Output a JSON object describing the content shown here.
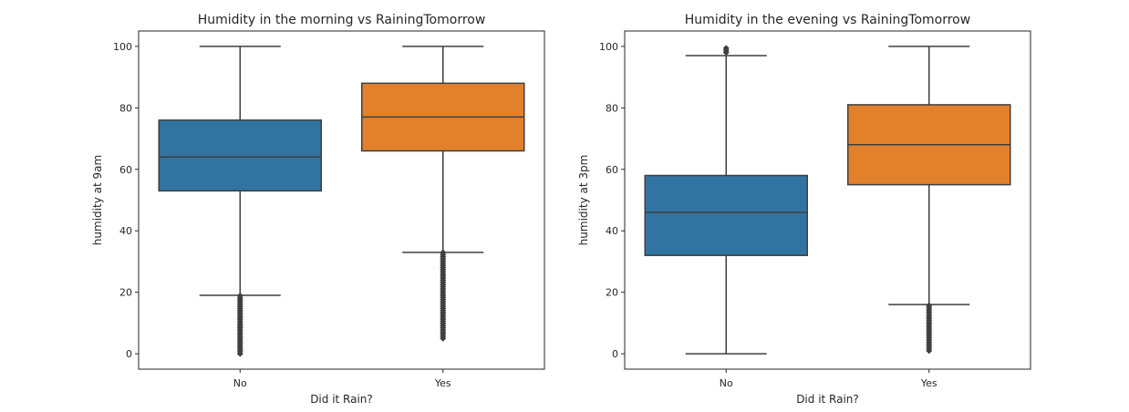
{
  "chart_data": [
    {
      "type": "box",
      "title": "Humidity in the morning vs RainingTomorrow",
      "xlabel": "Did it Rain?",
      "ylabel": "humidity at 9am",
      "ylim": [
        -5,
        105
      ],
      "yticks": [
        0,
        20,
        40,
        60,
        80,
        100
      ],
      "grid": false,
      "categories": [
        "No",
        "Yes"
      ],
      "boxes": [
        {
          "category": "No",
          "color": "#3274a1",
          "whisker_low": 19,
          "q1": 53,
          "median": 64,
          "q3": 76,
          "whisker_high": 100,
          "outliers_low_range": [
            0,
            19
          ]
        },
        {
          "category": "Yes",
          "color": "#e1812c",
          "whisker_low": 33,
          "q1": 66,
          "median": 77,
          "q3": 88,
          "whisker_high": 100,
          "outliers_low_range": [
            5,
            33
          ]
        }
      ]
    },
    {
      "type": "box",
      "title": "Humidity in the evening vs RainingTomorrow",
      "xlabel": "Did it Rain?",
      "ylabel": "humidity at 3pm",
      "ylim": [
        -5,
        105
      ],
      "yticks": [
        0,
        20,
        40,
        60,
        80,
        100
      ],
      "grid": false,
      "categories": [
        "No",
        "Yes"
      ],
      "boxes": [
        {
          "category": "No",
          "color": "#3274a1",
          "whisker_low": 0,
          "q1": 32,
          "median": 46,
          "q3": 58,
          "whisker_high": 97,
          "outliers_high_range": [
            98,
            100
          ]
        },
        {
          "category": "Yes",
          "color": "#e1812c",
          "whisker_low": 16,
          "q1": 55,
          "median": 68,
          "q3": 81,
          "whisker_high": 100,
          "outliers_low_range": [
            1,
            16
          ]
        }
      ]
    }
  ]
}
